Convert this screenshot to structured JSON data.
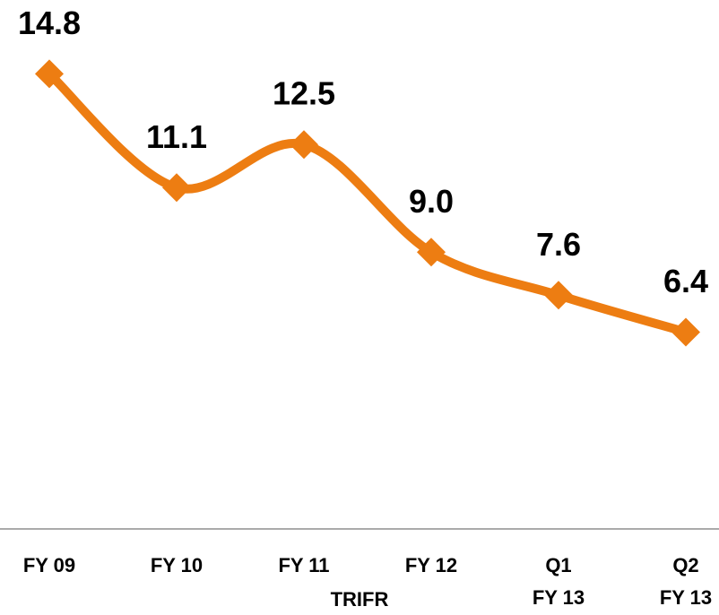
{
  "chart_data": {
    "type": "line",
    "x_label": "TRIFR",
    "categories": [
      "FY 09",
      "FY 10",
      "FY 11",
      "FY 12",
      "Q1\nFY 13",
      "Q2\nFY 13"
    ],
    "series": [
      {
        "color": "#ED7D12",
        "values": [
          14.8,
          11.1,
          12.5,
          9.0,
          7.6,
          6.4
        ],
        "value_labels": [
          "14.8",
          "11.1",
          "12.5",
          "9.0",
          "7.6",
          "6.4"
        ]
      }
    ],
    "ylim": [
      0,
      17.2
    ],
    "smooth": true,
    "markers": "diamond"
  }
}
